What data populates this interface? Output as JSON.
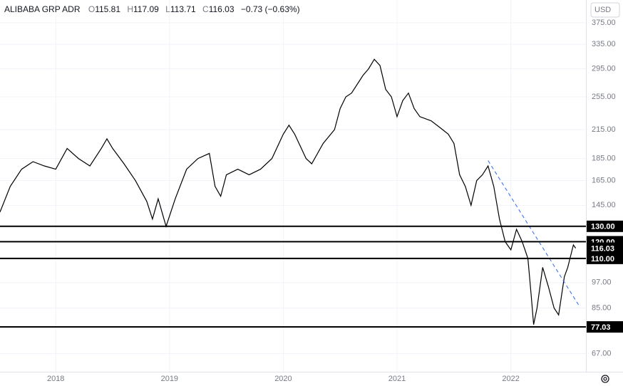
{
  "chart_data": {
    "type": "line",
    "header": {
      "symbol": "ALIBABA GRP ADR",
      "open_label": "O",
      "open": "115.81",
      "high_label": "H",
      "high": "117.09",
      "low_label": "L",
      "low": "113.71",
      "close_label": "C",
      "close": "116.03",
      "change": "−0.73 (−0.63%)"
    },
    "currency": "USD",
    "log_scale": true,
    "grid": true,
    "xlim": [
      2017.51,
      2022.66
    ],
    "ylim": [
      61,
      422
    ],
    "xticks": [
      2018,
      2019,
      2020,
      2021,
      2022
    ],
    "yticks": [
      {
        "value": 375,
        "label": "375.00"
      },
      {
        "value": 335,
        "label": "335.00"
      },
      {
        "value": 295,
        "label": "295.00"
      },
      {
        "value": 255,
        "label": "255.00"
      },
      {
        "value": 215,
        "label": "215.00"
      },
      {
        "value": 185,
        "label": "185.00"
      },
      {
        "value": 165,
        "label": "165.00"
      },
      {
        "value": 145,
        "label": "145.00"
      },
      {
        "value": 97,
        "label": "97.00"
      },
      {
        "value": 85,
        "label": "85.00"
      },
      {
        "value": 67,
        "label": "67.00"
      }
    ],
    "series": [
      {
        "color": "#000000",
        "x": [
          2017.51,
          2017.6,
          2017.7,
          2017.8,
          2017.9,
          2018.0,
          2018.1,
          2018.2,
          2018.3,
          2018.4,
          2018.45,
          2018.5,
          2018.6,
          2018.7,
          2018.8,
          2018.85,
          2018.9,
          2018.97,
          2019.05,
          2019.15,
          2019.25,
          2019.35,
          2019.4,
          2019.45,
          2019.5,
          2019.6,
          2019.7,
          2019.8,
          2019.9,
          2020.0,
          2020.05,
          2020.1,
          2020.2,
          2020.25,
          2020.35,
          2020.45,
          2020.5,
          2020.55,
          2020.6,
          2020.7,
          2020.75,
          2020.8,
          2020.85,
          2020.9,
          2020.95,
          2021.0,
          2021.05,
          2021.1,
          2021.15,
          2021.2,
          2021.3,
          2021.4,
          2021.45,
          2021.5,
          2021.55,
          2021.6,
          2021.65,
          2021.7,
          2021.75,
          2021.8,
          2021.85,
          2021.9,
          2021.95,
          2022.0,
          2022.05,
          2022.1,
          2022.15,
          2022.18,
          2022.2,
          2022.23,
          2022.28,
          2022.33,
          2022.38,
          2022.42,
          2022.47,
          2022.5,
          2022.55,
          2022.57
        ],
        "values": [
          140,
          160,
          175,
          182,
          178,
          175,
          195,
          185,
          178,
          195,
          205,
          195,
          180,
          165,
          148,
          135,
          150,
          130,
          150,
          175,
          185,
          190,
          160,
          152,
          170,
          175,
          170,
          175,
          185,
          210,
          220,
          210,
          185,
          180,
          200,
          215,
          240,
          255,
          260,
          285,
          295,
          310,
          300,
          265,
          255,
          230,
          250,
          260,
          240,
          230,
          225,
          215,
          210,
          200,
          170,
          160,
          145,
          165,
          170,
          178,
          160,
          135,
          120,
          115,
          128,
          120,
          110,
          90,
          78,
          85,
          105,
          95,
          85,
          82,
          100,
          105,
          118,
          116.03
        ]
      }
    ],
    "trendline": {
      "color": "#2962ff",
      "x": [
        2021.8,
        2022.6
      ],
      "values": [
        183,
        86
      ]
    },
    "levels": [
      {
        "value": 130,
        "label": "130.00"
      },
      {
        "value": 120,
        "label": "120.00"
      },
      {
        "value": 110,
        "label": "110.00"
      },
      {
        "value": 77.03,
        "label": "77.03"
      }
    ],
    "last_price": {
      "value": 116.03,
      "label": "116.03"
    }
  }
}
